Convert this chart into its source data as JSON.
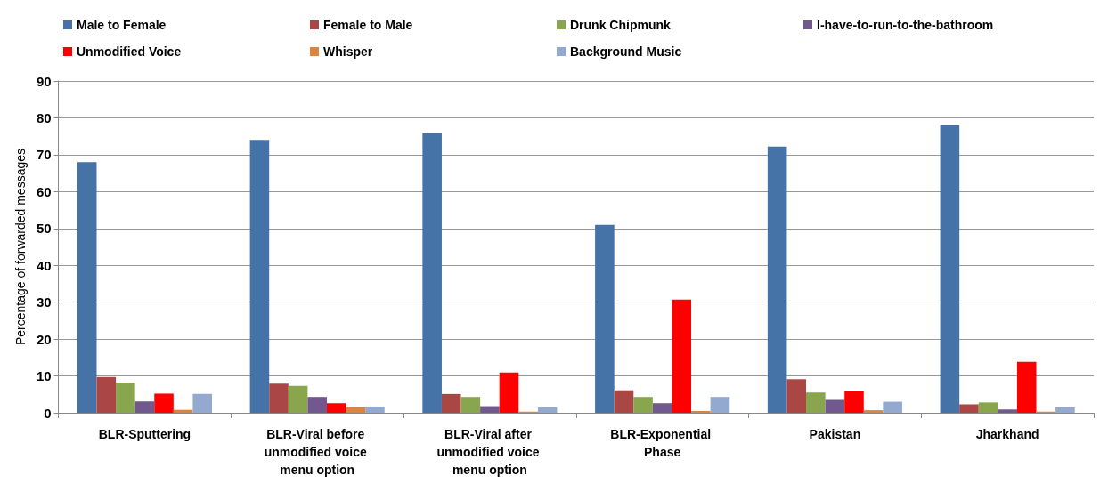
{
  "chart_data": {
    "type": "bar",
    "ylabel": "Percentage of forwarded messages",
    "categories": [
      "BLR-Sputtering",
      "BLR-Viral before unmodified voice menu option",
      "BLR-Viral after unmodified voice menu option",
      "BLR-Exponential Phase",
      "Pakistan",
      "Jharkhand"
    ],
    "series": [
      {
        "name": "Male to Female",
        "color": "#4572a7",
        "values": [
          68,
          74,
          75.8,
          51,
          72.2,
          78
        ]
      },
      {
        "name": "Female to Male",
        "color": "#aa4643",
        "values": [
          9.7,
          7.9,
          5.1,
          6.1,
          9.1,
          2.3
        ]
      },
      {
        "name": "Drunk Chipmunk",
        "color": "#89a54e",
        "values": [
          8.2,
          7.3,
          4.3,
          4.3,
          5.5,
          2.8
        ]
      },
      {
        "name": "I-have-to-run-to-the-bathroom",
        "color": "#71588f",
        "values": [
          3.1,
          4.3,
          1.8,
          2.6,
          3.5,
          0.9
        ]
      },
      {
        "name": "Unmodified Voice",
        "color": "#ff0000",
        "values": [
          5.2,
          2.6,
          10.9,
          30.7,
          5.8,
          13.8
        ]
      },
      {
        "name": "Whisper",
        "color": "#db843d",
        "values": [
          0.8,
          1.5,
          0.3,
          0.5,
          0.7,
          0.3
        ]
      },
      {
        "name": "Background Music",
        "color": "#93a9cf",
        "values": [
          5.1,
          1.7,
          1.5,
          4.3,
          3.0,
          1.5
        ]
      }
    ],
    "ylim": [
      0,
      90
    ],
    "yticks": [
      0,
      10,
      20,
      30,
      40,
      50,
      60,
      70,
      80,
      90
    ],
    "grid": "y",
    "legend": "top"
  }
}
